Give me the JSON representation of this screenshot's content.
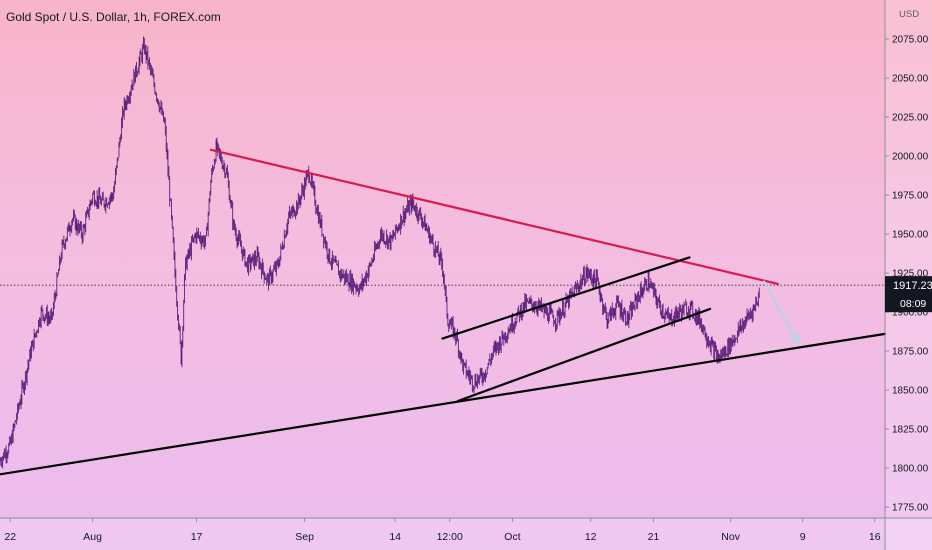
{
  "chart_data": {
    "type": "candlestick",
    "title": "Gold Spot / U.S. Dollar, 1h, FOREX.com",
    "currency": "USD",
    "y_ticks": [
      1775,
      1800,
      1825,
      1850,
      1875,
      1900,
      1925,
      1950,
      1975,
      2000,
      2025,
      2050,
      2075
    ],
    "y_tick_labels": [
      "1775.00",
      "1800.00",
      "1825.00",
      "1850.00",
      "1875.00",
      "1900.00",
      "1925.00",
      "1950.00",
      "1975.00",
      "2000.00",
      "2025.00",
      "2050.00",
      "2075.00"
    ],
    "ylim": [
      1768,
      2100
    ],
    "x_range": [
      0,
      86
    ],
    "x_ticks": [
      {
        "label": "22",
        "x": 1
      },
      {
        "label": "Aug",
        "x": 9
      },
      {
        "label": "17",
        "x": 19.1
      },
      {
        "label": "Sep",
        "x": 29.6
      },
      {
        "label": "14",
        "x": 38.4
      },
      {
        "label": "12:00",
        "x": 43.7
      },
      {
        "label": "Oct",
        "x": 49.8
      },
      {
        "label": "12",
        "x": 57.4
      },
      {
        "label": "21",
        "x": 63.5
      },
      {
        "label": "Nov",
        "x": 71
      },
      {
        "label": "9",
        "x": 78
      },
      {
        "label": "16",
        "x": 85
      }
    ],
    "price_path": [
      [
        0,
        1805
      ],
      [
        1,
        1815
      ],
      [
        2,
        1845
      ],
      [
        3,
        1875
      ],
      [
        4,
        1900
      ],
      [
        5,
        1895
      ],
      [
        6,
        1940
      ],
      [
        7,
        1960
      ],
      [
        8,
        1950
      ],
      [
        9,
        1975
      ],
      [
        10,
        1970
      ],
      [
        11,
        1975
      ],
      [
        12,
        2030
      ],
      [
        13,
        2050
      ],
      [
        14,
        2070
      ],
      [
        15,
        2045
      ],
      [
        16,
        2020
      ],
      [
        16.6,
        1965
      ],
      [
        17,
        1925
      ],
      [
        17.6,
        1870
      ],
      [
        18,
        1930
      ],
      [
        19,
        1950
      ],
      [
        20,
        1945
      ],
      [
        20.5,
        1985
      ],
      [
        21,
        2005
      ],
      [
        22,
        1990
      ],
      [
        22.7,
        1955
      ],
      [
        24,
        1930
      ],
      [
        25,
        1935
      ],
      [
        26,
        1920
      ],
      [
        27,
        1930
      ],
      [
        28,
        1960
      ],
      [
        29,
        1970
      ],
      [
        30,
        1990
      ],
      [
        31,
        1960
      ],
      [
        32,
        1935
      ],
      [
        33,
        1925
      ],
      [
        34,
        1920
      ],
      [
        35,
        1915
      ],
      [
        36,
        1930
      ],
      [
        37,
        1950
      ],
      [
        38,
        1945
      ],
      [
        39,
        1960
      ],
      [
        40,
        1970
      ],
      [
        41,
        1960
      ],
      [
        42,
        1945
      ],
      [
        43,
        1930
      ],
      [
        43.5,
        1895
      ],
      [
        44.3,
        1885
      ],
      [
        45,
        1865
      ],
      [
        46,
        1855
      ],
      [
        47,
        1860
      ],
      [
        48,
        1875
      ],
      [
        49,
        1885
      ],
      [
        50,
        1895
      ],
      [
        51,
        1905
      ],
      [
        52,
        1905
      ],
      [
        53,
        1900
      ],
      [
        54,
        1895
      ],
      [
        55,
        1905
      ],
      [
        56,
        1915
      ],
      [
        57,
        1925
      ],
      [
        58,
        1920
      ],
      [
        59,
        1895
      ],
      [
        60,
        1905
      ],
      [
        61,
        1895
      ],
      [
        62,
        1910
      ],
      [
        63,
        1920
      ],
      [
        64,
        1905
      ],
      [
        65,
        1895
      ],
      [
        66,
        1900
      ],
      [
        67,
        1903
      ],
      [
        68,
        1895
      ],
      [
        69,
        1880
      ],
      [
        69.8,
        1870
      ],
      [
        70.8,
        1878
      ],
      [
        71.5,
        1885
      ],
      [
        72.5,
        1895
      ],
      [
        73.3,
        1903
      ],
      [
        73.8,
        1912
      ]
    ],
    "trendlines": [
      {
        "color": "#d81b4f",
        "from": [
          20.5,
          2004
        ],
        "to": [
          75.6,
          1918
        ]
      },
      {
        "color": "#000000",
        "from": [
          0,
          1796
        ],
        "to": [
          86,
          1886
        ]
      },
      {
        "color": "#000000",
        "from": [
          43,
          1883
        ],
        "to": [
          67,
          1935
        ]
      },
      {
        "color": "#000000",
        "from": [
          44.5,
          1843
        ],
        "to": [
          69,
          1902
        ]
      }
    ],
    "projection_arrow": {
      "color": "#bcd0e8",
      "from": [
        74.2,
        1920
      ],
      "to": [
        77.6,
        1880
      ]
    },
    "current_price": {
      "value": 1917.23,
      "label": "1917.23",
      "countdown": "08:09"
    },
    "colors": {
      "candles": "#5b1f7a",
      "price_badge": "#131722"
    }
  }
}
